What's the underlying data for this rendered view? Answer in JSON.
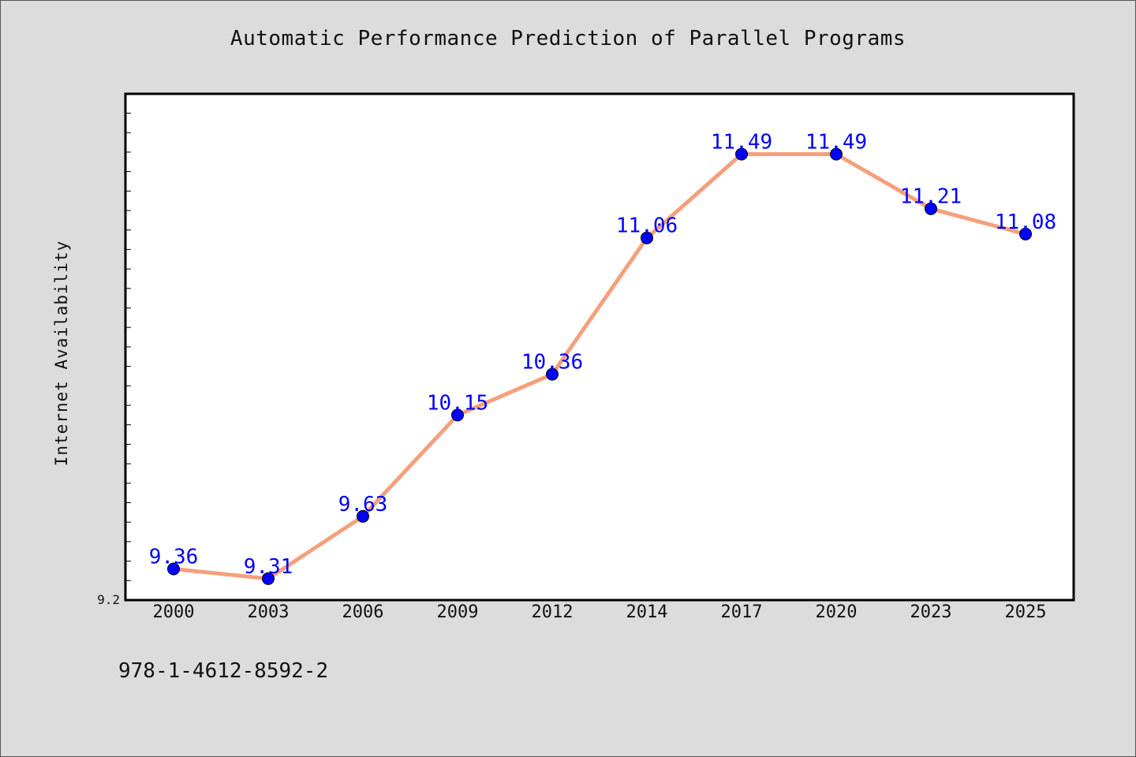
{
  "chart_data": {
    "type": "line",
    "title": "Automatic Performance Prediction of Parallel Programs",
    "xlabel": "",
    "ylabel": "Internet Availability",
    "categories": [
      "2000",
      "2003",
      "2006",
      "2009",
      "2012",
      "2014",
      "2017",
      "2020",
      "2023",
      "2025"
    ],
    "series": [
      {
        "values": [
          9.36,
          9.31,
          9.63,
          10.15,
          10.36,
          11.06,
          11.49,
          11.49,
          11.21,
          11.08
        ]
      }
    ],
    "ylim": [
      9.2,
      11.8
    ],
    "y_min_label": "9.2",
    "grid": false,
    "line_color": "#f4a07c",
    "marker_color": "#0000ff",
    "label_color": "#0000ff"
  },
  "footer": {
    "isbn": "978-1-4612-8592-2"
  }
}
